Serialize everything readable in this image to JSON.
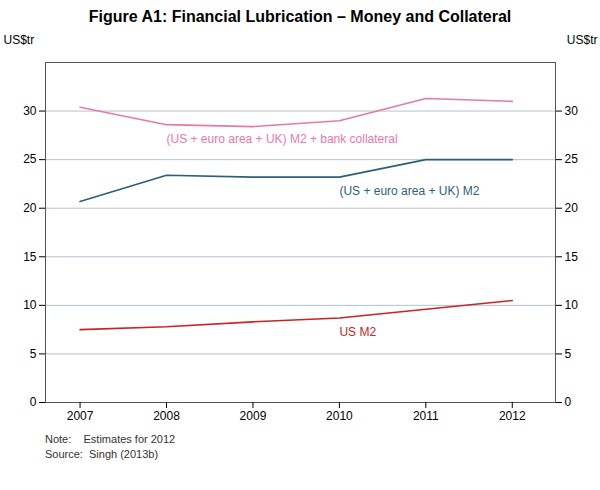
{
  "chart_data": {
    "type": "line",
    "title": "Figure A1: Financial Lubrication – Money and Collateral",
    "notes": [
      "Note:    Estimates for 2012",
      "Source:  Singh (2013b)"
    ],
    "ylabel": "US$tr",
    "y2label": "US$tr",
    "x": [
      2007,
      2008,
      2009,
      2010,
      2011,
      2012
    ],
    "series": [
      {
        "name": "(US + euro area + UK) M2 + bank collateral",
        "color": "#e878a8",
        "values": [
          30.4,
          28.6,
          28.4,
          29.0,
          31.3,
          31.0
        ]
      },
      {
        "name": "(US + euro area + UK) M2",
        "color": "#2b5f7a",
        "values": [
          20.7,
          23.4,
          23.2,
          23.2,
          25.0,
          25.0
        ]
      },
      {
        "name": "US M2",
        "color": "#cc2222",
        "values": [
          7.5,
          7.8,
          8.3,
          8.7,
          9.6,
          10.5
        ]
      }
    ],
    "xlim": [
      2006.6,
      2012.5
    ],
    "xticks": [
      2007,
      2008,
      2009,
      2010,
      2011,
      2012
    ],
    "ylim": [
      0,
      35
    ],
    "yticks": [
      0,
      5,
      10,
      15,
      20,
      25,
      30
    ],
    "y2lim": [
      0,
      35
    ],
    "y2ticks": [
      0,
      5,
      10,
      15,
      20,
      25,
      30
    ],
    "grid": true
  }
}
